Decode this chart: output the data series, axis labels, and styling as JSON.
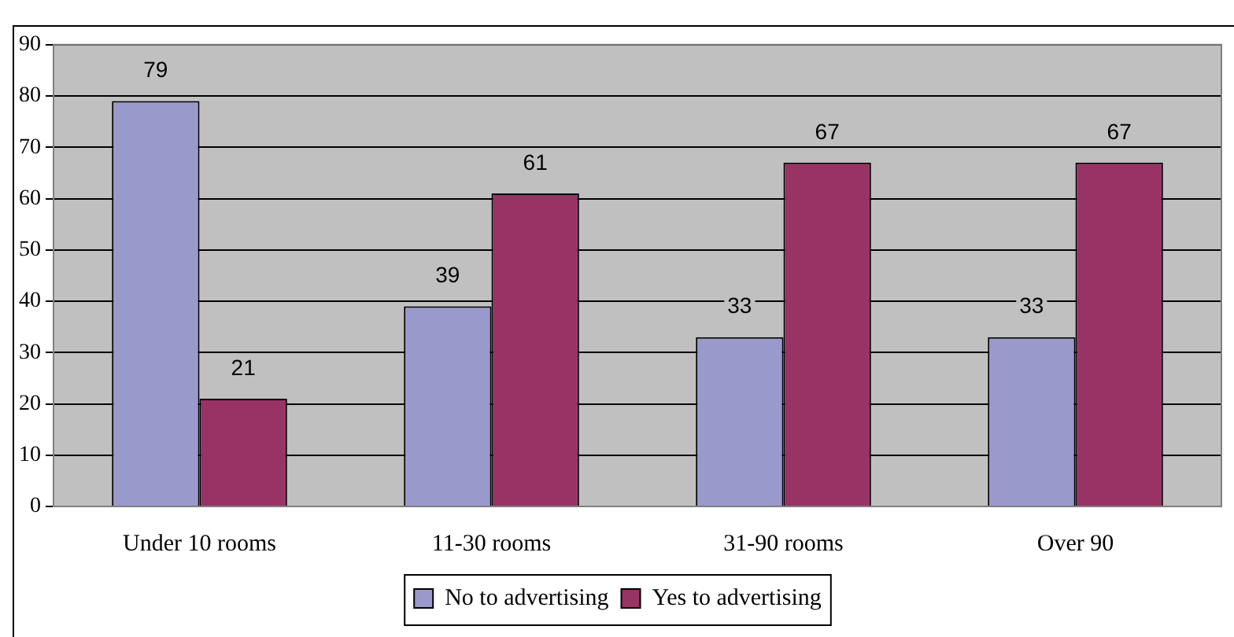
{
  "chart_data": {
    "type": "bar",
    "categories": [
      "Under 10 rooms",
      "11-30 rooms",
      "31-90 rooms",
      "Over 90"
    ],
    "series": [
      {
        "name": "No to advertising",
        "color": "#9999cc",
        "values": [
          79,
          39,
          33,
          33
        ]
      },
      {
        "name": "Yes to advertising",
        "color": "#993366",
        "values": [
          21,
          61,
          67,
          67
        ]
      }
    ],
    "ylim": [
      0,
      90
    ],
    "yticks": [
      0,
      10,
      20,
      30,
      40,
      50,
      60,
      70,
      80,
      90
    ],
    "grid": "y",
    "legend": "bottom",
    "data_labels": true
  }
}
